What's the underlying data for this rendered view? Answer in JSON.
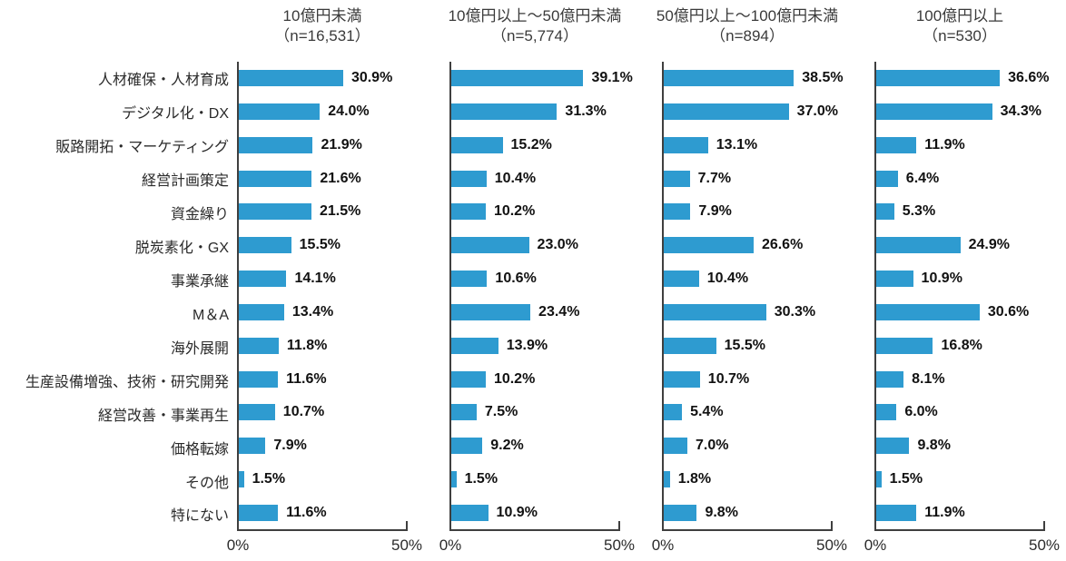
{
  "chart_data": {
    "type": "bar",
    "orientation": "horizontal",
    "title": "",
    "categories": [
      "人材確保・人材育成",
      "デジタル化・DX",
      "販路開拓・マーケティング",
      "経営計画策定",
      "資金繰り",
      "脱炭素化・GX",
      "事業承継",
      "M＆A",
      "海外展開",
      "生産設備増強、技術・研究開発",
      "経営改善・事業再生",
      "価格転嫁",
      "その他",
      "特にない"
    ],
    "series": [
      {
        "name": "10億円未満",
        "n_label": "（n=16,531）",
        "values": [
          30.9,
          24.0,
          21.9,
          21.6,
          21.5,
          15.5,
          14.1,
          13.4,
          11.8,
          11.6,
          10.7,
          7.9,
          1.5,
          11.6
        ]
      },
      {
        "name": "10億円以上～50億円未満",
        "n_label": "（n=5,774）",
        "values": [
          39.1,
          31.3,
          15.2,
          10.4,
          10.2,
          23.0,
          10.6,
          23.4,
          13.9,
          10.2,
          7.5,
          9.2,
          1.5,
          10.9
        ]
      },
      {
        "name": "50億円以上～100億円未満",
        "n_label": "（n=894）",
        "values": [
          38.5,
          37.0,
          13.1,
          7.7,
          7.9,
          26.6,
          10.4,
          30.3,
          15.5,
          10.7,
          5.4,
          7.0,
          1.8,
          9.8
        ]
      },
      {
        "name": "100億円以上",
        "n_label": "（n=530）",
        "values": [
          36.6,
          34.3,
          11.9,
          6.4,
          5.3,
          24.9,
          10.9,
          30.6,
          16.8,
          8.1,
          6.0,
          9.8,
          1.5,
          11.9
        ]
      }
    ],
    "xlim": [
      0,
      50
    ],
    "x_ticks": [
      "0%",
      "50%"
    ],
    "value_suffix": "%",
    "value_decimals": 1,
    "bar_color": "#2E9BD0",
    "axis_color": "#3F3F3F",
    "grid": false,
    "legend": false
  }
}
